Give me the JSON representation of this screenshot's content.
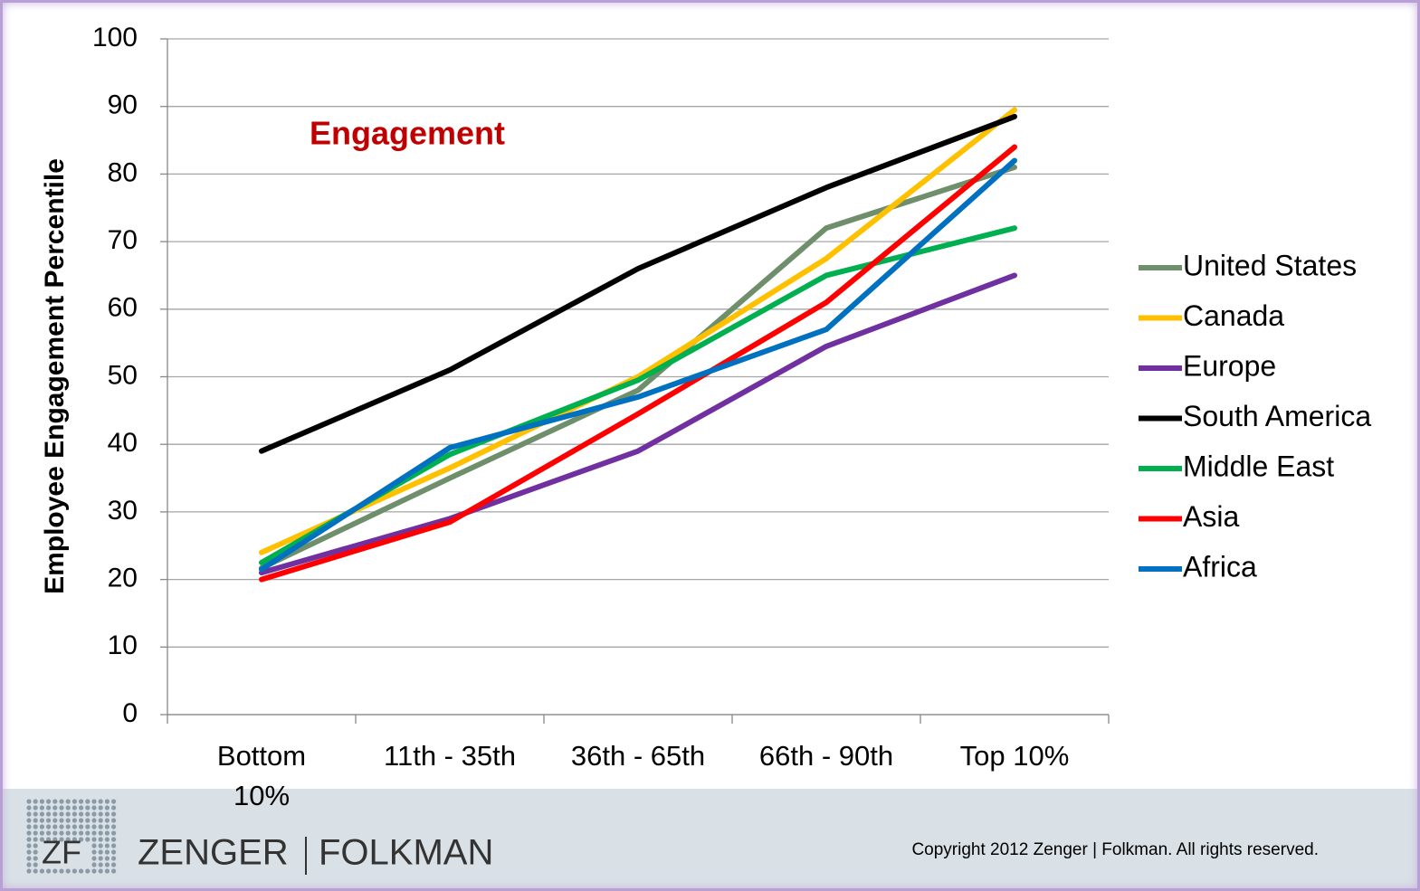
{
  "chart_data": {
    "type": "line",
    "annotation": "Engagement",
    "ylabel": "Employee Engagement Percentile",
    "categories": [
      "Bottom 10%",
      "11th - 35th",
      "36th - 65th",
      "66th - 90th",
      "Top 10%"
    ],
    "series": [
      {
        "name": "United States",
        "color": "#6f8f6c",
        "values": [
          21.7,
          35,
          48,
          72,
          81
        ]
      },
      {
        "name": "Canada",
        "color": "#ffc000",
        "values": [
          24,
          36.5,
          50,
          67.5,
          89.5
        ]
      },
      {
        "name": "Europe",
        "color": "#7030a0",
        "values": [
          21,
          29,
          39,
          54.5,
          65
        ]
      },
      {
        "name": "South America",
        "color": "#000000",
        "values": [
          39,
          51,
          66,
          78,
          88.5
        ]
      },
      {
        "name": "Middle East",
        "color": "#00b050",
        "values": [
          22.5,
          38.5,
          49.5,
          65,
          72
        ]
      },
      {
        "name": "Asia",
        "color": "#ff0000",
        "values": [
          20,
          28.5,
          44.5,
          61,
          84
        ]
      },
      {
        "name": "Africa",
        "color": "#0070c0",
        "values": [
          21.5,
          39.5,
          47,
          57,
          82
        ]
      }
    ],
    "ylim": [
      0,
      100
    ],
    "yticks": [
      0,
      10,
      20,
      30,
      40,
      50,
      60,
      70,
      80,
      90,
      100
    ],
    "grid": true,
    "legend": "right"
  },
  "footer": {
    "logo": "ZF",
    "brand_left": "ZENGER",
    "brand_right": "FOLKMAN",
    "copyright": "Copyright  2012 Zenger | Folkman. All rights reserved."
  }
}
